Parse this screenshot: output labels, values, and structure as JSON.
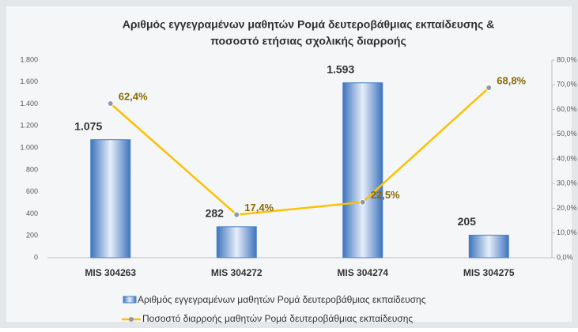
{
  "chart_data": {
    "type": "bar-line",
    "title": [
      "Αριθμός εγγεγραμένων μαθητών Ρομά δευτεροβάθμιας εκπαίδευσης &",
      "ποσοστό ετήσιας σχολικής διαρροής"
    ],
    "categories": [
      "MIS 304263",
      "MIS 304272",
      "MIS 304274",
      "MIS 304275"
    ],
    "series": [
      {
        "name": "Αριθμός εγγεγραμένων μαθητών Ρομά δευτεροβάθμιας εκπαίδευσης",
        "color": "#5b8fd0",
        "type": "bar",
        "values": [
          1075,
          282,
          1593,
          205
        ],
        "value_labels": [
          "1.075",
          "282",
          "1.593",
          "205"
        ]
      },
      {
        "name": "Ποσοστό διαρροής μαθητών Ρομά δευτεροβάθμιας εκπαίδευσης",
        "color": "#ffc000",
        "type": "line",
        "axis": "y2",
        "values": [
          62.4,
          17.4,
          22.5,
          68.8
        ],
        "value_labels": [
          "62,4%",
          "17,4%",
          "22,5%",
          "68,8%"
        ]
      }
    ],
    "ylim": [
      0,
      1800
    ],
    "yticks": [
      0,
      200,
      400,
      600,
      800,
      {
        "value": 1000,
        "label": "1.000"
      },
      {
        "value": 1200,
        "label": "1.200"
      },
      {
        "value": 1400,
        "label": "1.400"
      },
      {
        "value": 1600,
        "label": "1.600"
      },
      {
        "value": 1800,
        "label": "1.800"
      }
    ],
    "y2lim": [
      0,
      80
    ],
    "y2ticks": [
      {
        "value": 0,
        "label": "0,0%"
      },
      {
        "value": 10,
        "label": "10,0%"
      },
      {
        "value": 20,
        "label": "20,0%"
      },
      {
        "value": 30,
        "label": "30,0%"
      },
      {
        "value": 40,
        "label": "40,0%"
      },
      {
        "value": 50,
        "label": "50,0%"
      },
      {
        "value": 60,
        "label": "60,0%"
      },
      {
        "value": 70,
        "label": "70,0%"
      },
      {
        "value": 80,
        "label": "80,0%"
      }
    ],
    "grid": false,
    "legend": "bottom"
  }
}
